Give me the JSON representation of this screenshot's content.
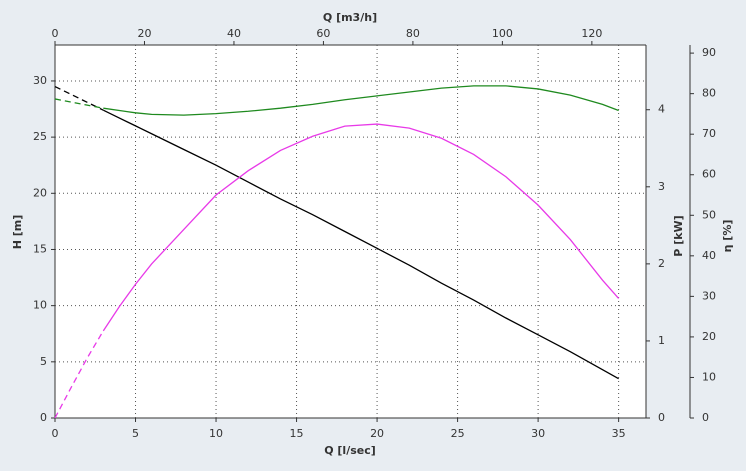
{
  "chart_data": {
    "type": "line",
    "x_label": "Q [l/sec]",
    "x2_label": "Q [m3/h]",
    "y_label": "H [m]",
    "y2_label": "P [kW]",
    "y3_label": "η [%]",
    "xlim": [
      0,
      36.7
    ],
    "xticks": [
      0,
      5,
      10,
      15,
      20,
      25,
      30,
      35
    ],
    "x2lim": [
      0,
      132.1
    ],
    "x2ticks": [
      0,
      20,
      40,
      60,
      80,
      100,
      120
    ],
    "ylim": [
      0,
      33.2
    ],
    "yticks": [
      0,
      5,
      10,
      15,
      20,
      25,
      30
    ],
    "y2lim": [
      0,
      4.84
    ],
    "y2ticks": [
      0,
      1,
      2,
      3,
      4
    ],
    "y3lim": [
      0,
      92
    ],
    "y3ticks": [
      0,
      10,
      20,
      30,
      40,
      50,
      60,
      70,
      80,
      90
    ],
    "grid": true,
    "x": [
      0,
      1,
      2,
      3,
      4,
      5,
      6,
      8,
      10,
      12,
      14,
      16,
      18,
      20,
      22,
      24,
      26,
      28,
      30,
      32,
      34,
      35
    ],
    "series": [
      {
        "color": "#000000",
        "axis": "y",
        "dash_to": 3,
        "values": [
          29.5,
          28.8,
          28.1,
          27.4,
          26.7,
          26.0,
          25.3,
          23.9,
          22.5,
          21.0,
          19.5,
          18.1,
          16.6,
          15.1,
          13.6,
          12.0,
          10.5,
          8.9,
          7.4,
          5.9,
          4.3,
          3.5
        ]
      },
      {
        "color": "#1f8a1f",
        "axis": "y2",
        "dash_to": 3,
        "values": [
          4.14,
          4.1,
          4.06,
          4.02,
          3.99,
          3.96,
          3.94,
          3.93,
          3.95,
          3.98,
          4.02,
          4.07,
          4.13,
          4.18,
          4.23,
          4.28,
          4.31,
          4.31,
          4.27,
          4.19,
          4.07,
          3.99
        ]
      },
      {
        "color": "#e83ae8",
        "axis": "y3",
        "dash_to": 3,
        "values": [
          0,
          7.5,
          14.8,
          21.5,
          27.5,
          33,
          38,
          46.5,
          55,
          61,
          66,
          69.5,
          72,
          72.5,
          71.5,
          69,
          65,
          59.5,
          52.5,
          44,
          34,
          29.5
        ]
      }
    ]
  }
}
